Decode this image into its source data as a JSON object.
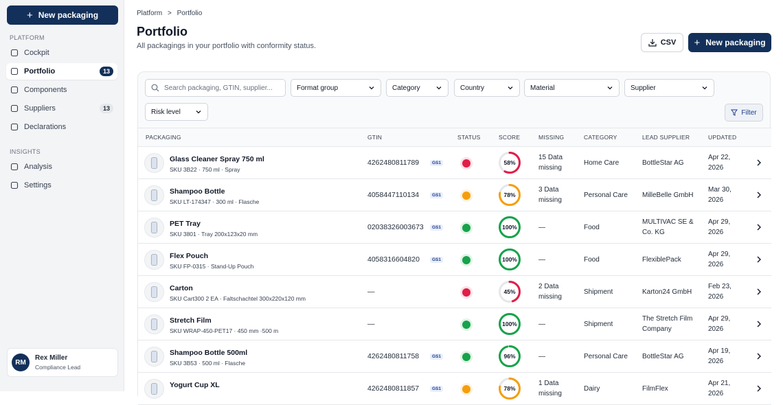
{
  "sidebar": {
    "new_button": "New packaging",
    "sections": [
      {
        "heading": "PLATFORM",
        "items": [
          {
            "label": "Cockpit"
          },
          {
            "label": "Portfolio",
            "badge": "13",
            "active": true
          },
          {
            "label": "Components"
          },
          {
            "label": "Suppliers",
            "badge": "13"
          },
          {
            "label": "Declarations"
          }
        ]
      },
      {
        "heading": "INSIGHTS",
        "items": [
          {
            "label": "Analysis"
          },
          {
            "label": "Settings"
          }
        ]
      }
    ],
    "user": {
      "initials": "RM",
      "name": "Rex Miller",
      "role": "Compliance Lead"
    }
  },
  "header": {
    "breadcrumb": [
      "Platform",
      "Portfolio"
    ],
    "title": "Portfolio",
    "subtitle": "All packagings in your portfolio with conformity status.",
    "csv_button": "CSV",
    "new_button": "New packaging"
  },
  "filters": {
    "search_placeholder": "Search packaging, GTIN, supplier...",
    "dropdowns": [
      "Format group",
      "Category",
      "Country",
      "Material",
      "Supplier",
      "Risk level"
    ],
    "filter_button": "Filter"
  },
  "table": {
    "columns": [
      "PACKAGING",
      "GTIN",
      "STATUS",
      "SCORE",
      "MISSING",
      "CATEGORY",
      "LEAD SUPPLIER",
      "UPDATED"
    ],
    "gs1_label": "GS1",
    "rows": [
      {
        "name": "Glass Cleaner Spray 750 ml",
        "sku": "SKU 3B22 · 750 ml · Spray",
        "gtin": "4262480811789",
        "gs1": true,
        "status": "red",
        "score": 58,
        "score_label": "58%",
        "missing": "15 Data missing",
        "category": "Home Care",
        "supplier": "BottleStar AG",
        "updated": "Apr 22, 2026"
      },
      {
        "name": "Shampoo Bottle",
        "sku": "SKU LT-174347 · 300 ml · Flasche",
        "gtin": "4058447110134",
        "gs1": true,
        "status": "amber",
        "score": 78,
        "score_label": "78%",
        "missing": "3 Data missing",
        "category": "Personal Care",
        "supplier": "MilleBelle GmbH",
        "updated": "Mar 30, 2026"
      },
      {
        "name": "PET Tray",
        "sku": "SKU 3801 · Tray 200x123x20 mm",
        "gtin": "02038326003673",
        "gs1": true,
        "status": "green",
        "score": 100,
        "score_label": "100%",
        "missing": "—",
        "category": "Food",
        "supplier": "MULTIVAC SE & Co. KG",
        "updated": "Apr 29, 2026"
      },
      {
        "name": "Flex Pouch",
        "sku": "SKU FP-0315 · Stand-Up Pouch",
        "gtin": "4058316604820",
        "gs1": true,
        "status": "green",
        "score": 100,
        "score_label": "100%",
        "missing": "—",
        "category": "Food",
        "supplier": "FlexiblePack",
        "updated": "Apr 29, 2026"
      },
      {
        "name": "Carton",
        "sku": "SKU Cart300 2 EA · Faltschachtel 300x220x120 mm",
        "gtin": "—",
        "gs1": false,
        "status": "red",
        "score": 45,
        "score_label": "45%",
        "missing": "2 Data missing",
        "category": "Shipment",
        "supplier": "Karton24 GmbH",
        "updated": "Feb 23, 2026"
      },
      {
        "name": "Stretch Film",
        "sku": "SKU WRAP-450-PET17 · 450 mm ·500 m",
        "gtin": "—",
        "gs1": false,
        "status": "green",
        "score": 100,
        "score_label": "100%",
        "missing": "—",
        "category": "Shipment",
        "supplier": "The Stretch Film Company",
        "updated": "Apr 29, 2026"
      },
      {
        "name": "Shampoo Bottle 500ml",
        "sku": "SKU 3B53 · 500 ml · Flasche",
        "gtin": "4262480811758",
        "gs1": true,
        "status": "green",
        "score": 96,
        "score_label": "96%",
        "missing": "—",
        "category": "Personal Care",
        "supplier": "BottleStar AG",
        "updated": "Apr 19, 2026"
      },
      {
        "name": "Yogurt Cup XL",
        "gtin": "4262480811857",
        "gs1": true,
        "status": "amber",
        "score": 78,
        "score_label": "78%",
        "missing": "1 Data missing",
        "category": "Dairy",
        "supplier": "FilmFlex",
        "updated": "Apr 21, 2026"
      }
    ]
  }
}
